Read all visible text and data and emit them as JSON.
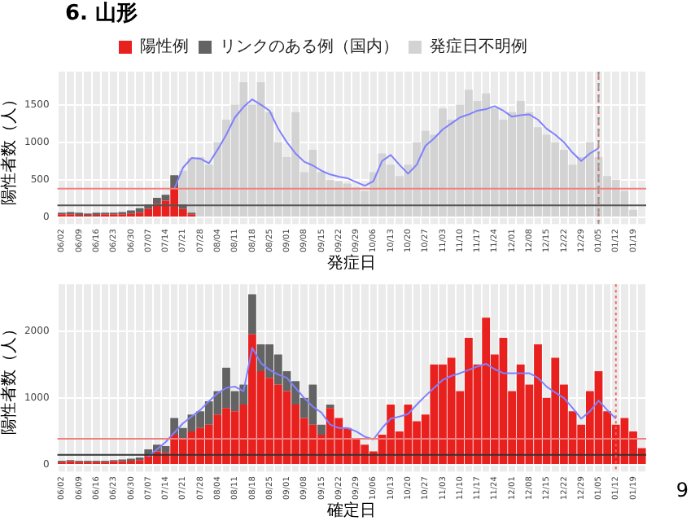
{
  "chart_data": [
    {
      "type": "bar",
      "title": "6. 山形",
      "xlabel": "発症日",
      "ylabel": "陽性者数（人）",
      "stacked": true,
      "legend": "top",
      "grid": true,
      "categories": [
        "06/02",
        null,
        "06/09",
        null,
        "06/16",
        null,
        "06/23",
        null,
        "06/30",
        null,
        "07/07",
        null,
        "07/14",
        null,
        "07/21",
        null,
        "07/28",
        null,
        "08/04",
        null,
        "08/11",
        null,
        "08/18",
        null,
        "08/25",
        null,
        "09/01",
        null,
        "09/08",
        null,
        "09/15",
        null,
        "09/22",
        null,
        "09/29",
        null,
        "10/06",
        null,
        "10/13",
        null,
        "10/20",
        null,
        "10/27",
        null,
        "11/03",
        null,
        "11/10",
        null,
        "11/17",
        null,
        "11/24",
        null,
        "12/01",
        null,
        "12/08",
        null,
        "12/15",
        null,
        "12/22",
        null,
        "12/29",
        null,
        "01/05",
        null,
        "01/12",
        null,
        "01/19",
        null
      ],
      "ylim": [
        -90,
        1940
      ],
      "yticks": [
        0,
        500,
        1000,
        1500
      ],
      "series": [
        {
          "name": "陽性例",
          "color": "#e8211f",
          "values": [
            40,
            40,
            30,
            30,
            30,
            40,
            40,
            40,
            50,
            60,
            110,
            180,
            220,
            400,
            110,
            40,
            null,
            null,
            null,
            null,
            null,
            null,
            null,
            null,
            null,
            null,
            null,
            null,
            null,
            null,
            null,
            null,
            null,
            null,
            null,
            null,
            null,
            null,
            null,
            null,
            null,
            null,
            null,
            null,
            null,
            null,
            null,
            null,
            null,
            null,
            null,
            null,
            null,
            null,
            null,
            null,
            null,
            null,
            null,
            null,
            null,
            null,
            null,
            null,
            null,
            null,
            null,
            null
          ]
        },
        {
          "name": "リンクのある例（国内）",
          "color": "#636363",
          "values": [
            20,
            30,
            30,
            20,
            30,
            20,
            20,
            30,
            40,
            60,
            60,
            80,
            80,
            160,
            60,
            20,
            null,
            null,
            null,
            null,
            null,
            null,
            null,
            null,
            null,
            null,
            null,
            null,
            null,
            null,
            null,
            null,
            null,
            null,
            null,
            null,
            null,
            null,
            null,
            null,
            null,
            null,
            null,
            null,
            null,
            null,
            null,
            null,
            null,
            null,
            null,
            null,
            null,
            null,
            null,
            null,
            null,
            null,
            null,
            null,
            null,
            null,
            null,
            null,
            null,
            null,
            null,
            null
          ]
        },
        {
          "name": "発症日不明例",
          "color": "#d3d3d3",
          "values": [
            null,
            null,
            null,
            null,
            null,
            null,
            null,
            null,
            null,
            null,
            null,
            null,
            null,
            null,
            450,
            730,
            800,
            700,
            1000,
            1300,
            1500,
            1800,
            1500,
            1800,
            1400,
            1000,
            800,
            1400,
            600,
            900,
            600,
            500,
            480,
            450,
            400,
            350,
            600,
            850,
            700,
            550,
            700,
            1000,
            1150,
            1100,
            1450,
            1300,
            1500,
            1700,
            1550,
            1650,
            1450,
            1300,
            1400,
            1550,
            1400,
            1200,
            1100,
            1000,
            900,
            700,
            800,
            1000,
            800,
            550,
            500,
            350,
            100,
            null
          ]
        },
        {
          "type": "line",
          "color": "#8080ff",
          "values": [
            null,
            null,
            null,
            null,
            null,
            null,
            null,
            null,
            null,
            null,
            null,
            null,
            null,
            380,
            660,
            790,
            780,
            720,
            900,
            1100,
            1330,
            1470,
            1570,
            1500,
            1420,
            1180,
            1000,
            850,
            740,
            690,
            620,
            570,
            540,
            520,
            470,
            420,
            480,
            750,
            830,
            700,
            580,
            700,
            950,
            1050,
            1170,
            1250,
            1330,
            1370,
            1420,
            1440,
            1480,
            1420,
            1340,
            1360,
            1370,
            1300,
            1180,
            1100,
            1000,
            860,
            750,
            850,
            920,
            null,
            null,
            null,
            null,
            null
          ]
        }
      ],
      "ref_lines": [
        {
          "axis": "y",
          "value": 380,
          "color": "#f08080",
          "line_style": "solid"
        },
        {
          "axis": "y",
          "value": 158,
          "color": "#555555",
          "line_style": "solid"
        },
        {
          "axis": "x",
          "value": "01/05",
          "color": "#f06060",
          "line_style": "dotted"
        },
        {
          "axis": "x",
          "value": "01/05",
          "color": "#999999",
          "line_style": "dashed"
        }
      ]
    },
    {
      "type": "bar",
      "xlabel": "確定日",
      "ylabel": "陽性者数（人）",
      "stacked": true,
      "grid": true,
      "categories": [
        "06/02",
        null,
        "06/09",
        null,
        "06/16",
        null,
        "06/23",
        null,
        "06/30",
        null,
        "07/07",
        null,
        "07/14",
        null,
        "07/21",
        null,
        "07/28",
        null,
        "08/04",
        null,
        "08/11",
        null,
        "08/18",
        null,
        "08/25",
        null,
        "09/01",
        null,
        "09/08",
        null,
        "09/15",
        null,
        "09/22",
        null,
        "09/29",
        null,
        "10/06",
        null,
        "10/13",
        null,
        "10/20",
        null,
        "10/27",
        null,
        "11/03",
        null,
        "11/10",
        null,
        "11/17",
        null,
        "11/24",
        null,
        "12/01",
        null,
        "12/08",
        null,
        "12/15",
        null,
        "12/22",
        null,
        "12/29",
        null,
        "01/05",
        null,
        "01/12",
        null,
        "01/19",
        null
      ],
      "ylim": [
        -100,
        2700
      ],
      "yticks": [
        0,
        1000,
        2000
      ],
      "series": [
        {
          "color": "#e8211f",
          "values": [
            40,
            50,
            40,
            40,
            40,
            40,
            50,
            50,
            60,
            70,
            130,
            200,
            180,
            450,
            400,
            500,
            550,
            600,
            750,
            850,
            800,
            900,
            1950,
            1400,
            1300,
            1200,
            1100,
            900,
            700,
            600,
            450,
            850,
            700,
            550,
            400,
            300,
            200,
            450,
            900,
            500,
            900,
            650,
            750,
            1500,
            1500,
            1600,
            1100,
            1900,
            1500,
            2200,
            1650,
            1900,
            1100,
            1500,
            1200,
            1800,
            1000,
            1600,
            1200,
            800,
            600,
            1100,
            1400,
            800,
            600,
            700,
            500,
            250
          ]
        },
        {
          "color": "#636363",
          "values": [
            20,
            20,
            20,
            20,
            20,
            20,
            20,
            30,
            30,
            40,
            100,
            100,
            100,
            250,
            150,
            250,
            250,
            350,
            350,
            600,
            300,
            300,
            600,
            400,
            500,
            450,
            300,
            350,
            300,
            600,
            150,
            50,
            null,
            null,
            null,
            null,
            null,
            null,
            null,
            null,
            null,
            null,
            null,
            null,
            null,
            null,
            null,
            null,
            null,
            null,
            null,
            null,
            null,
            null,
            null,
            null,
            null,
            null,
            null,
            null,
            null,
            null,
            null,
            null,
            null,
            null,
            null,
            null
          ]
        },
        {
          "type": "line",
          "color": "#8080ff",
          "values": [
            null,
            null,
            null,
            null,
            null,
            null,
            null,
            null,
            null,
            null,
            120,
            230,
            340,
            480,
            620,
            720,
            820,
            950,
            1070,
            1150,
            1170,
            1100,
            1750,
            1520,
            1420,
            1350,
            1300,
            1150,
            1000,
            870,
            780,
            600,
            550,
            550,
            500,
            420,
            380,
            550,
            690,
            720,
            760,
            900,
            1030,
            1150,
            1270,
            1330,
            1370,
            1420,
            1470,
            1510,
            1430,
            1370,
            1370,
            1370,
            1370,
            1300,
            1170,
            1080,
            1000,
            850,
            690,
            800,
            960,
            820,
            690,
            null,
            null,
            null
          ]
        }
      ],
      "ref_lines": [
        {
          "axis": "y",
          "value": 390,
          "color": "#f08080",
          "line_style": "solid"
        },
        {
          "axis": "y",
          "value": 150,
          "color": "#333333",
          "line_style": "solid"
        },
        {
          "axis": "x",
          "value": "01/12",
          "color": "#f06060",
          "line_style": "dotted"
        }
      ],
      "annotations": [
        "9"
      ]
    }
  ]
}
